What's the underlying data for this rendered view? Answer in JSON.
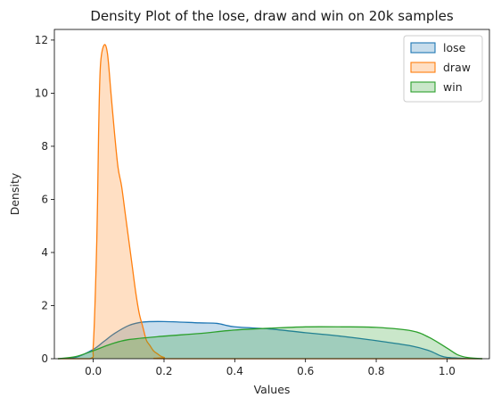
{
  "chart_data": {
    "type": "area",
    "title": "Density Plot of the lose, draw and win on 20k samples",
    "xlabel": "Values",
    "ylabel": "Density",
    "xlim": [
      -0.11,
      1.12
    ],
    "ylim": [
      0,
      12.4
    ],
    "xticks": [
      0.0,
      0.2,
      0.4,
      0.6,
      0.8,
      1.0
    ],
    "xtick_labels": [
      "0.0",
      "0.2",
      "0.4",
      "0.6",
      "0.8",
      "1.0"
    ],
    "yticks": [
      0,
      2,
      4,
      6,
      8,
      10,
      12
    ],
    "ytick_labels": [
      "0",
      "2",
      "4",
      "6",
      "8",
      "10",
      "12"
    ],
    "grid": false,
    "legend_position": "top-right",
    "series": [
      {
        "name": "lose",
        "line_color": "#1f77b4",
        "fill_color": "#1f77b4",
        "x": [
          -0.1,
          -0.05,
          0.0,
          0.03,
          0.06,
          0.1,
          0.14,
          0.2,
          0.3,
          0.35,
          0.4,
          0.5,
          0.6,
          0.7,
          0.8,
          0.9,
          0.95,
          0.98,
          1.0,
          1.05,
          1.1
        ],
        "y": [
          0.0,
          0.05,
          0.35,
          0.65,
          0.95,
          1.25,
          1.38,
          1.4,
          1.35,
          1.33,
          1.2,
          1.12,
          0.98,
          0.85,
          0.68,
          0.48,
          0.3,
          0.12,
          0.05,
          0.01,
          0.0
        ]
      },
      {
        "name": "draw",
        "line_color": "#ff7f0e",
        "fill_color": "#ff7f0e",
        "x": [
          -0.1,
          -0.01,
          0.0,
          0.01,
          0.015,
          0.02,
          0.03,
          0.04,
          0.05,
          0.06,
          0.07,
          0.08,
          0.09,
          0.1,
          0.11,
          0.12,
          0.13,
          0.14,
          0.15,
          0.16,
          0.17,
          0.18,
          0.2,
          0.25,
          1.1
        ],
        "y": [
          0.0,
          0.0,
          0.5,
          4.5,
          8.5,
          11.0,
          11.8,
          11.5,
          10.0,
          8.5,
          7.2,
          6.5,
          5.5,
          4.5,
          3.5,
          2.5,
          1.7,
          1.2,
          0.7,
          0.5,
          0.3,
          0.2,
          0.05,
          0.0,
          0.0
        ]
      },
      {
        "name": "win",
        "line_color": "#2ca02c",
        "fill_color": "#2ca02c",
        "x": [
          -0.1,
          -0.05,
          0.0,
          0.05,
          0.1,
          0.2,
          0.3,
          0.4,
          0.5,
          0.6,
          0.7,
          0.8,
          0.9,
          0.95,
          1.0,
          1.03,
          1.06,
          1.1
        ],
        "y": [
          0.0,
          0.08,
          0.3,
          0.55,
          0.72,
          0.85,
          0.95,
          1.08,
          1.15,
          1.2,
          1.2,
          1.18,
          1.05,
          0.8,
          0.4,
          0.15,
          0.04,
          0.0
        ]
      }
    ]
  }
}
